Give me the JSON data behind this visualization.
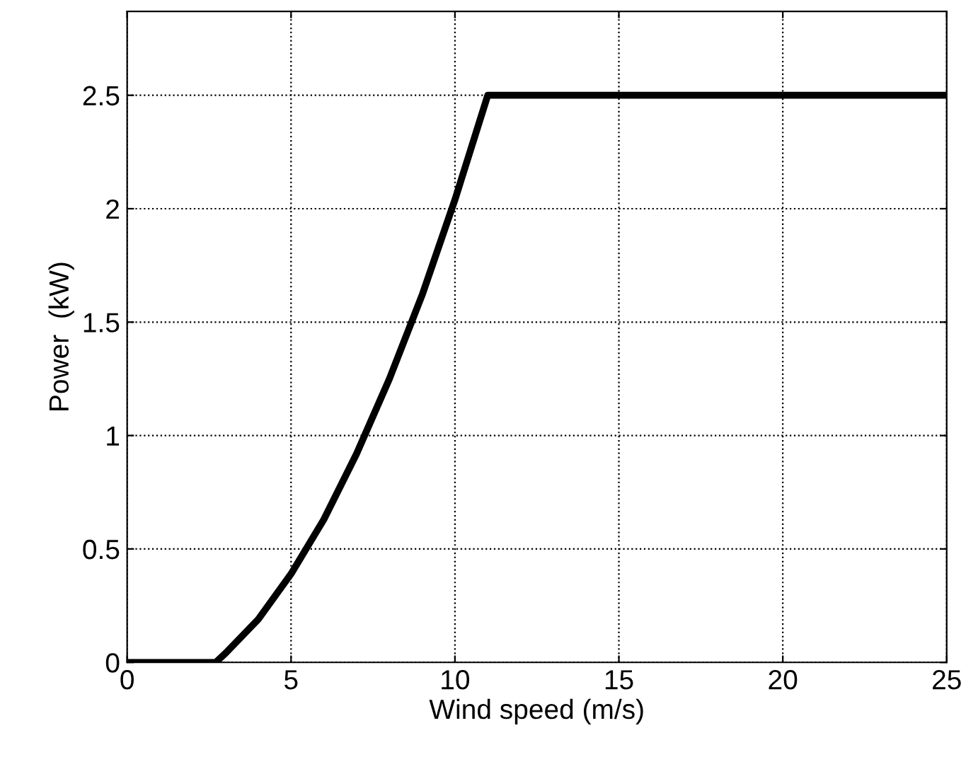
{
  "chart_data": {
    "type": "line",
    "xlabel": "Wind speed (m/s)",
    "ylabel": "Power  (kW)",
    "series": [
      {
        "color": "#000000",
        "x": [
          0,
          2.7,
          3,
          4,
          5,
          6,
          7,
          8,
          9,
          10,
          11,
          25
        ],
        "values": [
          0,
          0,
          0.04,
          0.19,
          0.39,
          0.63,
          0.92,
          1.25,
          1.62,
          2.04,
          2.5,
          2.5
        ]
      }
    ],
    "xlim": [
      0,
      25
    ],
    "xticks": [
      0,
      5,
      10,
      15,
      20,
      25
    ],
    "ylim": [
      0,
      2.87
    ],
    "yticks": [
      0,
      0.5,
      1,
      1.5,
      2,
      2.5
    ],
    "grid": true,
    "line_style": "solid",
    "marker": "none",
    "legend": false
  }
}
